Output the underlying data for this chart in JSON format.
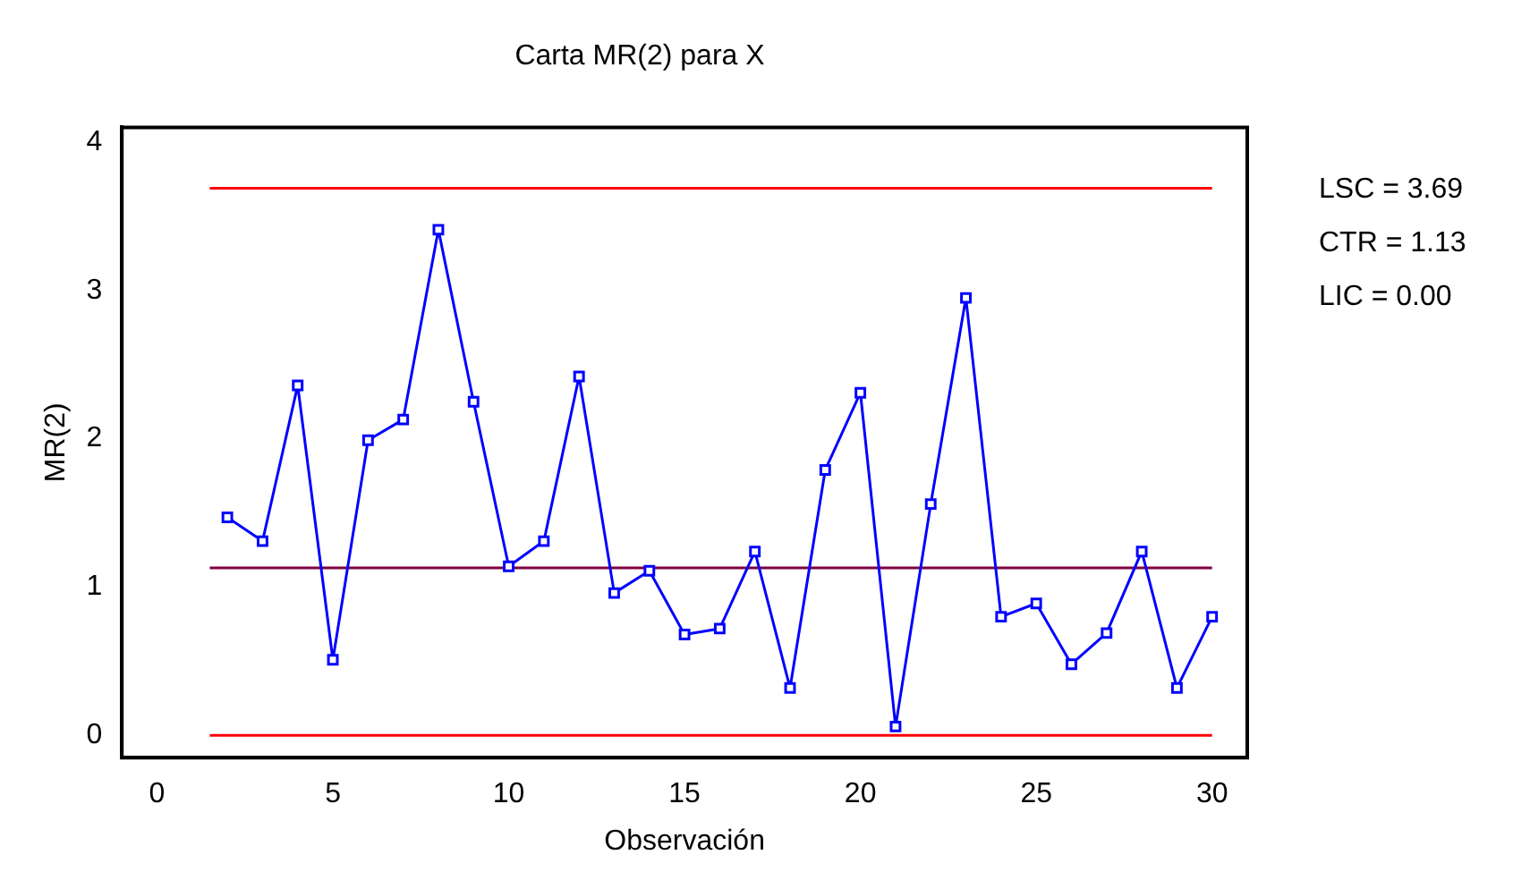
{
  "chart_data": {
    "type": "line",
    "title": "Carta MR(2) para X",
    "xlabel": "Observación",
    "ylabel": "MR(2)",
    "x": [
      2,
      3,
      4,
      5,
      6,
      7,
      8,
      9,
      10,
      11,
      12,
      13,
      14,
      15,
      16,
      17,
      18,
      19,
      20,
      21,
      22,
      23,
      24,
      25,
      26,
      27,
      28,
      29,
      30
    ],
    "series": [
      {
        "color": "#0000ff",
        "values": [
          1.47,
          1.31,
          2.36,
          0.51,
          1.99,
          2.13,
          3.41,
          2.25,
          1.14,
          1.31,
          2.42,
          0.96,
          1.11,
          0.68,
          0.72,
          1.24,
          0.32,
          1.79,
          2.31,
          0.06,
          1.56,
          2.95,
          0.8,
          0.89,
          0.48,
          0.69,
          1.24,
          0.32,
          0.8
        ]
      }
    ],
    "xlim": [
      -1,
      31
    ],
    "xticks": [
      0,
      5,
      10,
      15,
      20,
      25,
      30
    ],
    "ylim": [
      -0.15,
      4.1
    ],
    "yticks": [
      0,
      1,
      2,
      3,
      4
    ],
    "annotations": [
      "LSC = 3.69",
      "CTR = 1.13",
      "LIC = 0.00"
    ],
    "ref_lines": [
      {
        "axis": "y",
        "value": 3.69,
        "color": "#ff0000"
      },
      {
        "axis": "y",
        "value": 1.13,
        "color": "#800040"
      },
      {
        "axis": "y",
        "value": 0,
        "color": "#ff0000"
      }
    ],
    "grid": false,
    "legend": false,
    "marker": "square",
    "line_style": "solid"
  }
}
